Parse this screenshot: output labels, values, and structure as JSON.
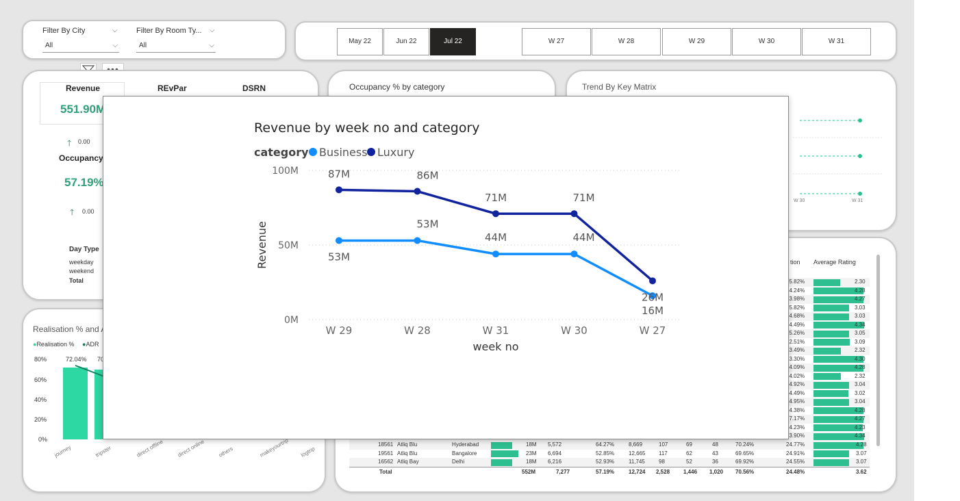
{
  "filters": {
    "city_label": "Filter By City",
    "city_value": "All",
    "room_label": "Filter By Room Ty...",
    "room_value": "All"
  },
  "months": [
    "May 22",
    "Jun 22",
    "Jul 22"
  ],
  "active_month": "Jul 22",
  "weeks": [
    "W 27",
    "W 28",
    "W 29",
    "W 30",
    "W 31"
  ],
  "kpis": {
    "revenue_label": "Revenue",
    "revenue_value": "551.90M",
    "revenue_delta": "0.00",
    "revpar_label": "REvPar",
    "dsrn_label": "DSRN",
    "occupancy_label": "Occupancy %",
    "occupancy_value": "57.19%",
    "occupancy_delta": "0.00"
  },
  "day_type": {
    "header": "Day Type",
    "rows": [
      "weekday",
      "weekend"
    ],
    "total": "Total"
  },
  "occupancy_card": {
    "title": "Occupancy % by category"
  },
  "trend_card": {
    "title": "Trend By Key Matrix",
    "x_labels": [
      "W 30",
      "W 31"
    ]
  },
  "realisation_card": {
    "title": "Realisation % and ADR",
    "legend": [
      "Realisation %",
      "ADR"
    ],
    "y_ticks": [
      "80%",
      "60%",
      "40%",
      "20%",
      "0%"
    ],
    "bar_labels": [
      "72.04%",
      "70"
    ],
    "bar_values": [
      72.04,
      70
    ],
    "x_labels": [
      "journey",
      "tripster",
      "direct offline",
      "direct online",
      "others",
      "makeyourtrip",
      "logtrip"
    ]
  },
  "table": {
    "header_partial": "tion",
    "header_rating": "Average Rating",
    "side_rows": [
      [
        "25.82%",
        "2.30",
        2.3
      ],
      [
        "24.24%",
        "4.28",
        4.28
      ],
      [
        "23.98%",
        "4.27",
        4.27
      ],
      [
        "25.82%",
        "3.03",
        3.03
      ],
      [
        "24.68%",
        "3.03",
        3.03
      ],
      [
        "24.49%",
        "4.34",
        4.34
      ],
      [
        "25.26%",
        "3.05",
        3.05
      ],
      [
        "22.51%",
        "3.09",
        3.09
      ],
      [
        "23.49%",
        "2.32",
        2.32
      ],
      [
        "23.30%",
        "4.30",
        4.3
      ],
      [
        "24.09%",
        "4.28",
        4.28
      ],
      [
        "24.02%",
        "2.32",
        2.32
      ],
      [
        "24.92%",
        "3.04",
        3.04
      ],
      [
        "24.49%",
        "3.02",
        3.02
      ],
      [
        "24.95%",
        "3.04",
        3.04
      ],
      [
        "24.38%",
        "4.28",
        4.28
      ],
      [
        "27.17%",
        "4.27",
        4.27
      ],
      [
        "24.23%",
        "4.23",
        4.23
      ],
      [
        "23.90%",
        "4.34",
        4.34
      ],
      [
        "24.77%",
        "4.28",
        4.28
      ]
    ],
    "bottom_rows": [
      [
        "18561",
        "Atliq Blu",
        "Hyderabad",
        "18M",
        "5,572",
        "64.27%",
        "8,669",
        "107",
        "69",
        "48",
        "70.24%",
        "24.77%",
        "4.28"
      ],
      [
        "19561",
        "Atliq Blu",
        "Bangalore",
        "23M",
        "6,694",
        "52.85%",
        "12,665",
        "117",
        "62",
        "43",
        "69.65%",
        "24.91%",
        "3.07"
      ],
      [
        "16562",
        "Atliq Bay",
        "Delhi",
        "18M",
        "6,216",
        "52.93%",
        "11,745",
        "98",
        "52",
        "36",
        "69.92%",
        "24.55%",
        "3.07"
      ]
    ],
    "total_row": [
      "Total",
      "552M",
      "7,277",
      "57.19%",
      "12,724",
      "2,528",
      "1,446",
      "1,020",
      "70.56%",
      "24.48%",
      "3.62"
    ]
  },
  "colors": {
    "business": "#118dff",
    "luxury": "#12239e",
    "accent": "#2fa07a",
    "bar": "#2ebf91"
  },
  "chart_data": {
    "type": "line",
    "title": "Revenue by week no and category",
    "legend_title": "category",
    "xlabel": "week no",
    "ylabel": "Revenue",
    "categories": [
      "W 29",
      "W 28",
      "W 31",
      "W 30",
      "W 27"
    ],
    "y_ticks": [
      "100M",
      "50M",
      "0M"
    ],
    "ylim": [
      0,
      100
    ],
    "grid": true,
    "legend": "top-left",
    "series": [
      {
        "name": "Business",
        "values": [
          53,
          53,
          44,
          44,
          16
        ],
        "labels": [
          "53M",
          "53M",
          "44M",
          "44M",
          "16M"
        ]
      },
      {
        "name": "Luxury",
        "values": [
          87,
          86,
          71,
          71,
          26
        ],
        "labels": [
          "87M",
          "86M",
          "71M",
          "71M",
          "26M"
        ]
      }
    ]
  }
}
